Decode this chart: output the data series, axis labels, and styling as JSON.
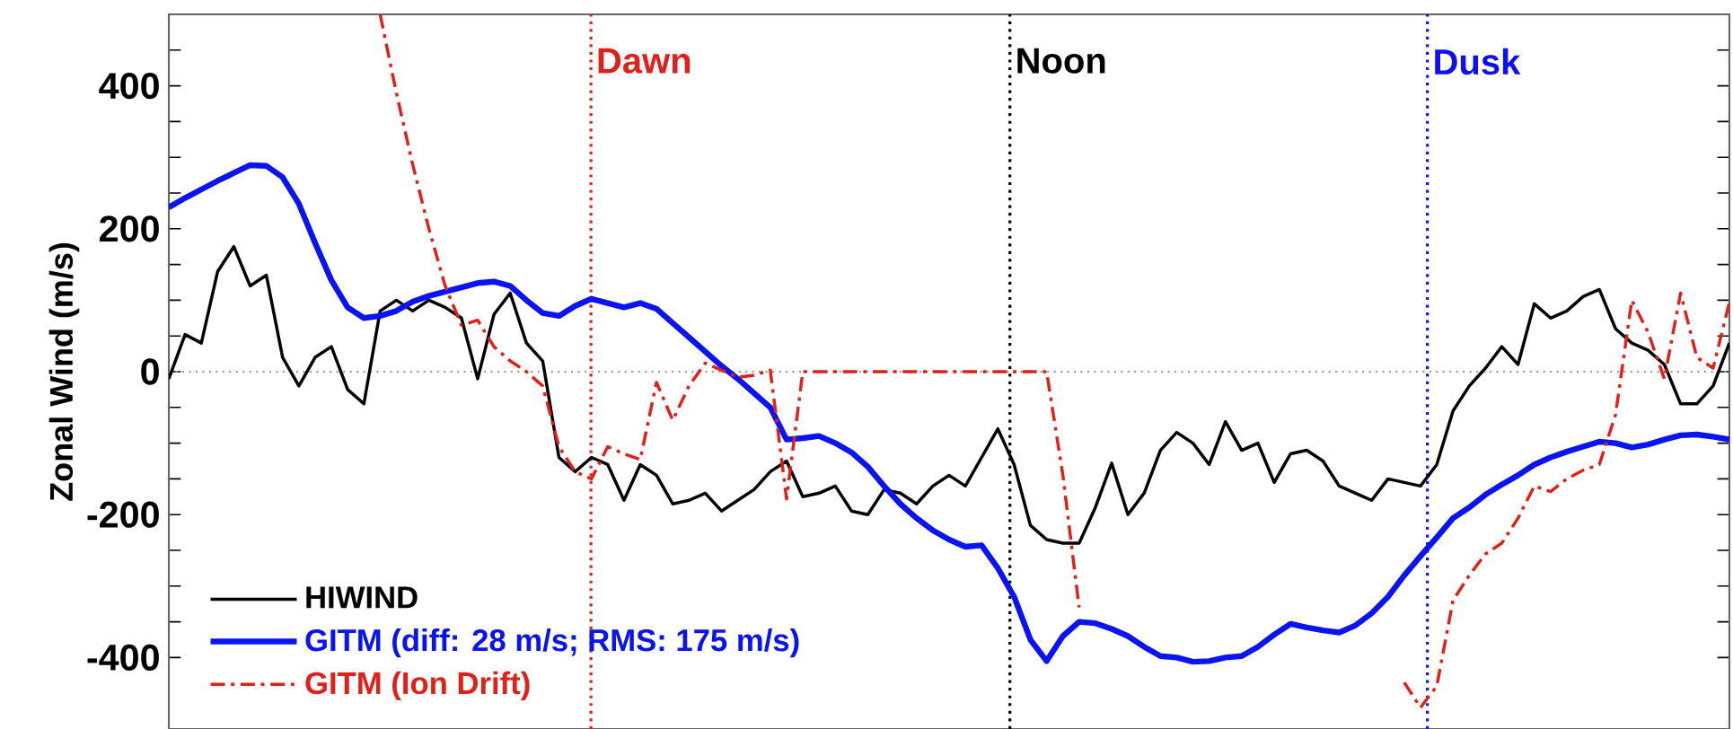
{
  "chart_data": {
    "type": "line",
    "ylabel": "Zonal Wind (m/s)",
    "categories": [
      null,
      null,
      null,
      null,
      null,
      null,
      null,
      null,
      null,
      null,
      null,
      null,
      null,
      null,
      null,
      null,
      null,
      null,
      null,
      null,
      null,
      null,
      null,
      null,
      null,
      null,
      null,
      null,
      null,
      null,
      null,
      null,
      null,
      null,
      null,
      null,
      null,
      null,
      null,
      null,
      null,
      null,
      null,
      null,
      null,
      null,
      null,
      null,
      null,
      null,
      null,
      null,
      null,
      null,
      null,
      null,
      null,
      null,
      null,
      null,
      null,
      null,
      null,
      null,
      null,
      null,
      null,
      null,
      null,
      null,
      null,
      null,
      null,
      null,
      null,
      null,
      null,
      null,
      null,
      null,
      null,
      null,
      null,
      null,
      null,
      null,
      null,
      null,
      null,
      null,
      null,
      null,
      null,
      null,
      null,
      null,
      null
    ],
    "ylim": [
      -500,
      500
    ],
    "yticks": [
      -400,
      {
        "value": -350,
        "label": null
      },
      {
        "value": -300,
        "label": null
      },
      {
        "value": -250,
        "label": null
      },
      -200,
      {
        "value": -150,
        "label": null
      },
      {
        "value": -100,
        "label": null
      },
      {
        "value": -50,
        "label": null
      },
      0,
      {
        "value": 50,
        "label": null
      },
      {
        "value": 100,
        "label": null
      },
      {
        "value": 150,
        "label": null
      },
      200,
      {
        "value": 250,
        "label": null
      },
      {
        "value": 300,
        "label": null
      },
      {
        "value": 350,
        "label": null
      },
      400,
      {
        "value": 450,
        "label": null
      }
    ],
    "tick_labels": "y",
    "legend": "bottom left",
    "marker": "none",
    "annotations": [
      "Dawn",
      "Noon",
      "Dusk"
    ],
    "ref_lines": [
      {
        "axis": "y",
        "value": 0,
        "color": "#999999",
        "line_style": "dotted"
      }
    ],
    "series": [
      {
        "name": "HIWIND",
        "color": "#000000",
        "line_style": "solid",
        "values": [
          -10,
          52,
          40,
          140,
          175,
          120,
          135,
          20,
          -20,
          20,
          35,
          -25,
          -45,
          85,
          100,
          85,
          100,
          90,
          75,
          -10,
          80,
          110,
          40,
          15,
          -120,
          -140,
          -120,
          -130,
          -180,
          -130,
          -145,
          -185,
          -180,
          -170,
          -195,
          -180,
          -165,
          -140,
          -125,
          -175,
          -170,
          -160,
          -195,
          -200,
          -165,
          -170,
          -185,
          -160,
          -145,
          -160,
          -120,
          -80,
          -130,
          -215,
          -235,
          -240,
          -240,
          -190,
          -128,
          -200,
          -170,
          -110,
          -85,
          -100,
          -130,
          -70,
          -110,
          -100,
          -155,
          -115,
          -110,
          -125,
          -160,
          -170,
          -180,
          -150,
          -155,
          -160,
          -130,
          -55,
          -20,
          5,
          35,
          10,
          95,
          75,
          85,
          105,
          115,
          60,
          40,
          30,
          10,
          -45,
          -45,
          -20,
          40
        ]
      },
      {
        "name": "GITM (diff: 28 m/s; RMS: 175 m/s)",
        "color": "#0a14f0",
        "line_style": "solid",
        "values": [
          230,
          243,
          255,
          267,
          278,
          289,
          288,
          272,
          235,
          180,
          128,
          90,
          75,
          78,
          85,
          98,
          106,
          112,
          118,
          124,
          126,
          120,
          100,
          82,
          78,
          92,
          102,
          96,
          90,
          96,
          88,
          68,
          48,
          28,
          8,
          -10,
          -30,
          -50,
          -95,
          -93,
          -90,
          -100,
          -113,
          -133,
          -160,
          -185,
          -205,
          -222,
          -235,
          -245,
          -243,
          -275,
          -315,
          -375,
          -405,
          -370,
          -350,
          -352,
          -360,
          -370,
          -385,
          -398,
          -400,
          -406,
          -405,
          -400,
          -398,
          -385,
          -368,
          -353,
          -358,
          -362,
          -365,
          -355,
          -338,
          -315,
          -285,
          -258,
          -232,
          -205,
          -190,
          -172,
          -158,
          -145,
          -130,
          -120,
          -112,
          -105,
          -98,
          -100,
          -106,
          -102,
          -95,
          -89,
          -88,
          -91,
          -95
        ]
      },
      {
        "name": "GITM (Ion Drift)",
        "color": "#e0201a",
        "line_style": "dashdot",
        "values": [
          null,
          null,
          null,
          null,
          null,
          null,
          null,
          null,
          null,
          null,
          null,
          null,
          null,
          500,
          390,
          290,
          200,
          120,
          65,
          72,
          35,
          15,
          0,
          -20,
          -105,
          -140,
          -150,
          -105,
          -115,
          -123,
          -15,
          -68,
          -20,
          12,
          2,
          -8,
          -5,
          2,
          -178,
          0,
          0,
          0,
          0,
          0,
          0,
          0,
          0,
          0,
          0,
          0,
          0,
          0,
          0,
          0,
          0,
          -145,
          -330,
          null,
          null,
          null,
          null,
          null,
          null,
          null,
          null,
          null,
          null,
          null,
          null,
          null,
          null,
          null,
          null,
          null,
          null,
          null,
          -435,
          -470,
          -440,
          -320,
          -285,
          -255,
          -240,
          -205,
          -160,
          -168,
          -150,
          -138,
          -130,
          -60,
          100,
          55,
          -10,
          110,
          20,
          5,
          97
        ]
      }
    ]
  }
}
